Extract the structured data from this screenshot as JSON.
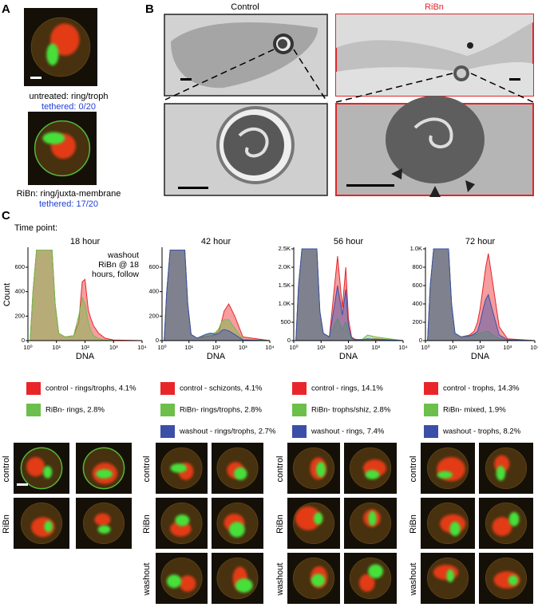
{
  "panel_a": {
    "label": "A",
    "captions": [
      {
        "line1": "untreated: ring/troph",
        "line2": "tethered: 0/20"
      },
      {
        "line1": "RiBn: ring/juxta-membrane",
        "line2": "tethered: 17/20"
      }
    ]
  },
  "panel_b": {
    "label": "B",
    "columns": [
      "Control",
      "RiBn"
    ]
  },
  "panel_c": {
    "label": "C",
    "heading": "Time point:"
  },
  "micrographs": [
    {
      "rows": [
        "control",
        "RiBn"
      ]
    },
    {
      "rows": [
        "control",
        "RiBn",
        "washout"
      ]
    },
    {
      "rows": [
        "control",
        "RiBn",
        "washout"
      ]
    },
    {
      "rows": [
        "control",
        "RiBn",
        "washout"
      ]
    }
  ],
  "chart_data": [
    {
      "type": "area",
      "title": "18 hour",
      "x_label": "DNA",
      "y_label": "Count",
      "annotation": [
        "washout",
        "RiBn @ 18",
        "hours, follow"
      ],
      "log_x": true,
      "x": [
        1.2,
        1.5,
        2,
        7,
        9,
        12,
        20,
        40,
        60,
        80,
        100,
        130,
        160,
        200,
        300,
        500,
        1000,
        10000
      ],
      "xlim": [
        1,
        10000
      ],
      "xticks": [
        {
          "value": 1,
          "label": "10⁰"
        },
        {
          "value": 10,
          "label": "10¹"
        },
        {
          "value": 100,
          "label": "10²"
        },
        {
          "value": 1000,
          "label": "10³"
        },
        {
          "value": 10000,
          "label": "10⁴"
        }
      ],
      "ylim": [
        0,
        750
      ],
      "yticks": [
        0,
        200,
        400,
        600
      ],
      "series": [
        {
          "name": "control - rings/trophs, 4.1%",
          "color": "#e8262a",
          "values": [
            0,
            400,
            740,
            740,
            300,
            60,
            30,
            40,
            150,
            480,
            500,
            250,
            180,
            120,
            60,
            20,
            5,
            0
          ]
        },
        {
          "name": "RiBn- rings, 2.8%",
          "color": "#6cbf4a",
          "values": [
            0,
            400,
            740,
            740,
            300,
            60,
            30,
            40,
            200,
            350,
            300,
            150,
            80,
            40,
            15,
            5,
            0,
            0
          ]
        }
      ]
    },
    {
      "type": "area",
      "title": "42 hour",
      "x_label": "DNA",
      "log_x": true,
      "x": [
        1.2,
        1.5,
        2,
        7,
        9,
        12,
        20,
        40,
        60,
        80,
        100,
        130,
        160,
        200,
        300,
        500,
        1000,
        10000
      ],
      "xlim": [
        1,
        10000
      ],
      "xticks": [
        {
          "value": 1,
          "label": "10⁰"
        },
        {
          "value": 10,
          "label": "10¹"
        },
        {
          "value": 100,
          "label": "10²"
        },
        {
          "value": 1000,
          "label": "10³"
        },
        {
          "value": 10000,
          "label": "10⁴"
        }
      ],
      "ylim": [
        0,
        750
      ],
      "yticks": [
        0,
        200,
        400,
        600
      ],
      "series": [
        {
          "name": "control - schizonts, 4.1%",
          "color": "#e8262a",
          "values": [
            0,
            400,
            740,
            740,
            300,
            50,
            20,
            30,
            40,
            40,
            60,
            80,
            150,
            240,
            300,
            200,
            30,
            0
          ]
        },
        {
          "name": "RiBn- rings/trophs, 2.8%",
          "color": "#6cbf4a",
          "values": [
            0,
            400,
            740,
            740,
            300,
            50,
            20,
            40,
            60,
            60,
            70,
            100,
            150,
            170,
            170,
            100,
            10,
            0
          ]
        },
        {
          "name": "washout - rings/trophs, 2.7%",
          "color": "#3b4fa8",
          "values": [
            0,
            400,
            740,
            740,
            300,
            50,
            20,
            50,
            60,
            55,
            50,
            60,
            80,
            90,
            80,
            50,
            5,
            0
          ]
        }
      ]
    },
    {
      "type": "area",
      "title": "56 hour",
      "x_label": "DNA",
      "log_x": true,
      "x": [
        1.2,
        1.5,
        2,
        7,
        9,
        12,
        20,
        40,
        60,
        80,
        100,
        130,
        160,
        200,
        300,
        500,
        1000,
        10000
      ],
      "xlim": [
        1,
        10000
      ],
      "xticks": [
        {
          "value": 1,
          "label": "10⁰"
        },
        {
          "value": 10,
          "label": "10¹"
        },
        {
          "value": 100,
          "label": "10²"
        },
        {
          "value": 1000,
          "label": "10³"
        },
        {
          "value": 10000,
          "label": "10⁴"
        }
      ],
      "ylim": [
        0,
        2500
      ],
      "yticks": [
        0,
        500,
        {
          "value": 1000,
          "label": "1.0K"
        },
        {
          "value": 1500,
          "label": "1.5K"
        },
        {
          "value": 2000,
          "label": "2.0K"
        },
        {
          "value": 2500,
          "label": "2.5K"
        }
      ],
      "series": [
        {
          "name": "control - rings, 14.1%",
          "color": "#e8262a",
          "values": [
            0,
            1500,
            2500,
            2500,
            800,
            200,
            100,
            2300,
            900,
            2000,
            600,
            100,
            50,
            30,
            30,
            40,
            50,
            0
          ]
        },
        {
          "name": "RiBn- trophs/shiz, 2.8%",
          "color": "#6cbf4a",
          "values": [
            0,
            1500,
            2500,
            2500,
            800,
            200,
            100,
            600,
            300,
            500,
            200,
            50,
            20,
            10,
            20,
            150,
            100,
            0
          ]
        },
        {
          "name": "washout - rings, 7.4%",
          "color": "#3b4fa8",
          "values": [
            0,
            1500,
            2500,
            2500,
            800,
            200,
            100,
            1500,
            700,
            1400,
            400,
            80,
            30,
            20,
            20,
            50,
            30,
            0
          ]
        }
      ]
    },
    {
      "type": "area",
      "title": "72 hour",
      "x_label": "DNA",
      "log_x": true,
      "x": [
        1.2,
        1.5,
        2,
        7,
        9,
        12,
        20,
        40,
        60,
        80,
        100,
        130,
        160,
        200,
        300,
        500,
        1000,
        10000
      ],
      "xlim": [
        1,
        10000
      ],
      "xticks": [
        {
          "value": 1,
          "label": "10⁰"
        },
        {
          "value": 10,
          "label": "10¹"
        },
        {
          "value": 100,
          "label": "10²"
        },
        {
          "value": 1000,
          "label": "10³"
        },
        {
          "value": 10000,
          "label": "10⁴"
        }
      ],
      "ylim": [
        0,
        1000
      ],
      "yticks": [
        0,
        200,
        400,
        600,
        800,
        {
          "value": 1000,
          "label": "1.0K"
        }
      ],
      "series": [
        {
          "name": "control - trophs, 14.3%",
          "color": "#e8262a",
          "values": [
            0,
            600,
            1000,
            1000,
            400,
            80,
            40,
            60,
            100,
            200,
            350,
            600,
            800,
            950,
            600,
            150,
            20,
            0
          ]
        },
        {
          "name": "RiBn- mixed, 1.9%",
          "color": "#6cbf4a",
          "values": [
            0,
            600,
            1000,
            1000,
            400,
            80,
            40,
            50,
            60,
            70,
            80,
            90,
            100,
            100,
            60,
            20,
            5,
            0
          ]
        },
        {
          "name": "washout - trophs, 8.2%",
          "color": "#3b4fa8",
          "values": [
            0,
            600,
            1000,
            1000,
            400,
            80,
            40,
            50,
            70,
            100,
            200,
            350,
            450,
            500,
            300,
            60,
            10,
            0
          ]
        }
      ]
    }
  ]
}
